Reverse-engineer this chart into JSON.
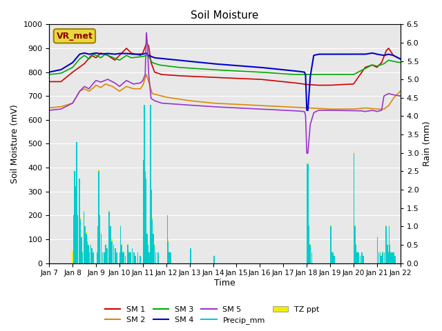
{
  "title": "Soil Moisture",
  "xlabel": "Time",
  "ylabel_left": "Soil Moisture (mV)",
  "ylabel_right": "Rain (mm)",
  "ylim_left": [
    0,
    1000
  ],
  "ylim_right": [
    0,
    6.5
  ],
  "yticks_left": [
    0,
    100,
    200,
    300,
    400,
    500,
    600,
    700,
    800,
    900,
    1000
  ],
  "yticks_right": [
    0.0,
    0.5,
    1.0,
    1.5,
    2.0,
    2.5,
    3.0,
    3.5,
    4.0,
    4.5,
    5.0,
    5.5,
    6.0,
    6.5
  ],
  "xticklabels": [
    "Jan 7",
    "Jan 8",
    "Jan 9",
    "Jan 10",
    "Jan 11",
    "Jan 12",
    "Jan 13",
    "Jan 14",
    "Jan 15",
    "Jan 16",
    "Jan 17",
    "Jan 18",
    "Jan 19",
    "Jan 20",
    "Jan 21",
    "Jan 22"
  ],
  "background_color": "#e8e8e8",
  "legend_box_label": "VR_met",
  "colors": {
    "SM1": "#cc0000",
    "SM2": "#dd8800",
    "SM3": "#00aa00",
    "SM4": "#0000cc",
    "SM5": "#9933cc",
    "Precip_mm": "#00cccc",
    "TZ_ppt": "#eeee00"
  }
}
